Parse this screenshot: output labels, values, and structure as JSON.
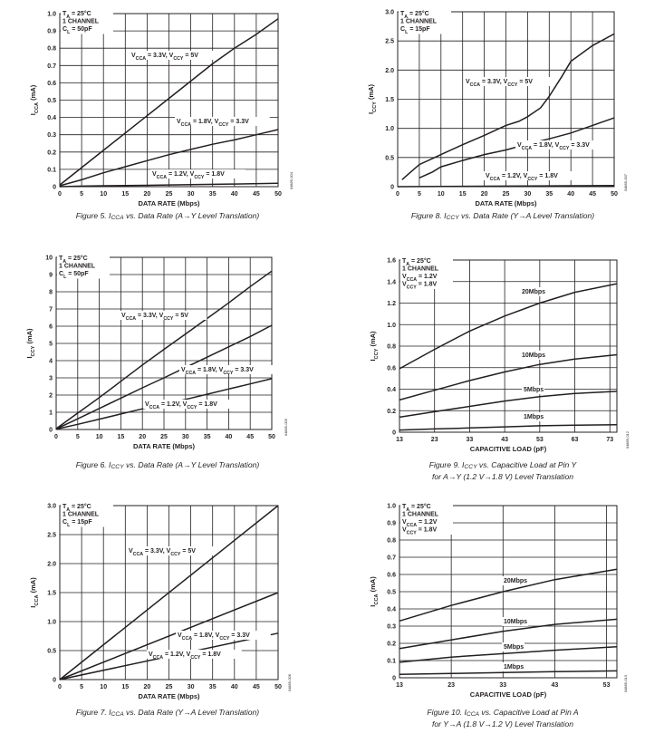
{
  "charts": [
    {
      "id": "fig5",
      "code": "04885-004",
      "caption": "Figure 5. ICCA vs. Data Rate (A→Y Level Translation)",
      "chart_data": {
        "type": "line",
        "xlabel": "DATA RATE (Mbps)",
        "ylabel": "ICCA (mA)",
        "xlim": [
          0,
          50
        ],
        "ylim": [
          0,
          1.0
        ],
        "xticks": [
          0,
          5,
          10,
          15,
          20,
          25,
          30,
          35,
          40,
          45,
          50
        ],
        "yticks": [
          0,
          0.1,
          0.2,
          0.3,
          0.4,
          0.5,
          0.6,
          0.7,
          0.8,
          0.9,
          1.0
        ],
        "ytick_labels": [
          "0",
          "0.1",
          "0.2",
          "0.3",
          "0.4",
          "0.5",
          "0.6",
          "0.7",
          "0.8",
          "0.9",
          "1.0"
        ],
        "grid": true,
        "conditions": [
          "TA = 25°C",
          "1 CHANNEL",
          "CL = 50pF"
        ],
        "series": [
          {
            "name": "VCCA = 3.3V, VCCY = 5V",
            "x": [
              0,
              5,
              10,
              15,
              20,
              25,
              30,
              35,
              40,
              45,
              50
            ],
            "y": [
              0.01,
              0.11,
              0.21,
              0.31,
              0.41,
              0.51,
              0.61,
              0.71,
              0.8,
              0.88,
              0.97
            ]
          },
          {
            "name": "VCCA = 1.8V, VCCY = 3.3V",
            "x": [
              0,
              5,
              10,
              15,
              20,
              25,
              30,
              35,
              40,
              45,
              50
            ],
            "y": [
              0.005,
              0.04,
              0.08,
              0.115,
              0.15,
              0.185,
              0.215,
              0.245,
              0.27,
              0.3,
              0.33
            ]
          },
          {
            "name": "VCCA = 1.2V, VCCY = 1.8V",
            "x": [
              0,
              5,
              10,
              20,
              30,
              40,
              50
            ],
            "y": [
              0.0,
              0.003,
              0.005,
              0.008,
              0.012,
              0.015,
              0.02
            ]
          }
        ]
      }
    },
    {
      "id": "fig8",
      "code": "04885-007",
      "caption": "Figure 8. ICCY vs. Data Rate (Y→A Level Translation)",
      "chart_data": {
        "type": "line",
        "xlabel": "DATA RATE (Mbps)",
        "ylabel": "ICCY (mA)",
        "xlim": [
          0,
          50
        ],
        "ylim": [
          0,
          3.0
        ],
        "xticks": [
          0,
          5,
          10,
          15,
          20,
          25,
          30,
          35,
          40,
          45,
          50
        ],
        "yticks": [
          0,
          0.5,
          1.0,
          1.5,
          2.0,
          2.5,
          3.0
        ],
        "ytick_labels": [
          "0",
          "0.5",
          "1.0",
          "1.5",
          "2.0",
          "2.5",
          "3.0"
        ],
        "grid": true,
        "conditions": [
          "TA = 25°C",
          "1 CHANNEL",
          "CL = 15pF"
        ],
        "series": [
          {
            "name": "VCCA = 3.3V, VCCY = 5V",
            "x": [
              1,
              3,
              5,
              8,
              10,
              15,
              20,
              25,
              28,
              30,
              33,
              35,
              38,
              40,
              45,
              50
            ],
            "y": [
              0.12,
              0.25,
              0.38,
              0.48,
              0.55,
              0.72,
              0.88,
              1.05,
              1.12,
              1.2,
              1.35,
              1.55,
              1.9,
              2.15,
              2.42,
              2.62
            ]
          },
          {
            "name": "VCCA = 1.8V, VCCY = 3.3V",
            "x": [
              5,
              8,
              10,
              15,
              20,
              25,
              30,
              35,
              40,
              45,
              50
            ],
            "y": [
              0.15,
              0.25,
              0.34,
              0.45,
              0.55,
              0.63,
              0.73,
              0.82,
              0.92,
              1.05,
              1.18
            ]
          },
          {
            "name": "VCCA = 1.2V, VCCY = 1.8V",
            "x": [
              0,
              10,
              20,
              30,
              40,
              50
            ],
            "y": [
              0.0,
              0.004,
              0.008,
              0.012,
              0.016,
              0.02
            ]
          }
        ]
      }
    },
    {
      "id": "fig6",
      "code": "04885-005",
      "caption": "Figure 6. ICCY vs. Data Rate (A→Y Level Translation)",
      "chart_data": {
        "type": "line",
        "xlabel": "DATA RATE (Mbps)",
        "ylabel": "ICCY (mA)",
        "xlim": [
          0,
          50
        ],
        "ylim": [
          0,
          10
        ],
        "xticks": [
          0,
          5,
          10,
          15,
          20,
          25,
          30,
          35,
          40,
          45,
          50
        ],
        "yticks": [
          0,
          1,
          2,
          3,
          4,
          5,
          6,
          7,
          8,
          9,
          10
        ],
        "ytick_labels": [
          "0",
          "1",
          "2",
          "3",
          "4",
          "5",
          "6",
          "7",
          "8",
          "9",
          "10"
        ],
        "grid": true,
        "conditions": [
          "TA = 25°C",
          "1 CHANNEL",
          "CL = 50pF"
        ],
        "series": [
          {
            "name": "VCCA = 3.3V, VCCY = 5V",
            "x": [
              0,
              5,
              10,
              15,
              20,
              25,
              30,
              35,
              40,
              45,
              50
            ],
            "y": [
              0.05,
              0.95,
              1.85,
              2.8,
              3.75,
              4.65,
              5.55,
              6.45,
              7.35,
              8.3,
              9.2
            ]
          },
          {
            "name": "VCCA = 1.8V, VCCY = 3.3V",
            "x": [
              0,
              5,
              10,
              15,
              20,
              25,
              30,
              35,
              40,
              45,
              50
            ],
            "y": [
              0.03,
              0.62,
              1.22,
              1.82,
              2.42,
              3.0,
              3.6,
              4.2,
              4.8,
              5.4,
              6.05
            ]
          },
          {
            "name": "VCCA = 1.2V, VCCY = 1.8V",
            "x": [
              0,
              5,
              10,
              15,
              20,
              25,
              30,
              35,
              40,
              45,
              50
            ],
            "y": [
              0.02,
              0.3,
              0.6,
              0.9,
              1.2,
              1.5,
              1.75,
              2.05,
              2.35,
              2.65,
              2.95
            ]
          }
        ]
      }
    },
    {
      "id": "fig9",
      "code": "04885-012",
      "caption": "Figure 9. ICCY vs. Capacitive Load at Pin Y|for A→Y (1.2 V→1.8 V) Level Translation",
      "chart_data": {
        "type": "line",
        "xlabel": "CAPACITIVE LOAD (pF)",
        "ylabel": "ICCY (mA)",
        "xlim": [
          13,
          75
        ],
        "ylim": [
          0,
          1.6
        ],
        "xticks": [
          13,
          23,
          33,
          43,
          53,
          63,
          73
        ],
        "yticks": [
          0,
          0.2,
          0.4,
          0.6,
          0.8,
          1.0,
          1.2,
          1.4,
          1.6
        ],
        "ytick_labels": [
          "0",
          "0.2",
          "0.4",
          "0.6",
          "0.8",
          "1.0",
          "1.2",
          "1.4",
          "1.6"
        ],
        "grid": true,
        "conditions": [
          "TA = 25°C",
          "1 CHANNEL",
          "VCCA = 1.2V",
          "VCCY = 1.8V"
        ],
        "series": [
          {
            "name": "20Mbps",
            "x": [
              13,
              23,
              33,
              43,
              53,
              63,
              75
            ],
            "y": [
              0.59,
              0.77,
              0.94,
              1.08,
              1.2,
              1.3,
              1.38
            ]
          },
          {
            "name": "10Mbps",
            "x": [
              13,
              23,
              33,
              43,
              53,
              63,
              75
            ],
            "y": [
              0.3,
              0.39,
              0.48,
              0.56,
              0.63,
              0.68,
              0.72
            ]
          },
          {
            "name": "5Mbps",
            "x": [
              13,
              23,
              33,
              43,
              53,
              63,
              75
            ],
            "y": [
              0.14,
              0.19,
              0.24,
              0.29,
              0.33,
              0.36,
              0.38
            ]
          },
          {
            "name": "1Mbps",
            "x": [
              13,
              23,
              33,
              43,
              53,
              63,
              75
            ],
            "y": [
              0.02,
              0.03,
              0.04,
              0.05,
              0.06,
              0.065,
              0.07
            ]
          }
        ]
      }
    },
    {
      "id": "fig7",
      "code": "04885-006",
      "caption": "Figure 7. ICCA vs. Data Rate (Y→A Level Translation)",
      "chart_data": {
        "type": "line",
        "xlabel": "DATA RATE (Mbps)",
        "ylabel": "ICCA (mA)",
        "xlim": [
          0,
          50
        ],
        "ylim": [
          0,
          3.0
        ],
        "xticks": [
          0,
          5,
          10,
          15,
          20,
          25,
          30,
          35,
          40,
          45,
          50
        ],
        "yticks": [
          0,
          0.5,
          1.0,
          1.5,
          2.0,
          2.5,
          3.0
        ],
        "ytick_labels": [
          "0",
          "0.5",
          "1.0",
          "1.5",
          "2.0",
          "2.5",
          "3.0"
        ],
        "grid": true,
        "conditions": [
          "TA = 25°C",
          "1 CHANNEL",
          "CL = 15pF"
        ],
        "series": [
          {
            "name": "VCCA = 3.3V, VCCY = 5V",
            "x": [
              0,
              50
            ],
            "y": [
              0.0,
              3.0
            ]
          },
          {
            "name": "VCCA = 1.8V, VCCY = 3.3V",
            "x": [
              0,
              50
            ],
            "y": [
              0.0,
              1.5
            ]
          },
          {
            "name": "VCCA = 1.2V, VCCY = 1.8V",
            "x": [
              0,
              50
            ],
            "y": [
              0.0,
              0.8
            ]
          }
        ]
      }
    },
    {
      "id": "fig10",
      "code": "04885-013",
      "caption": "Figure 10. ICCA vs. Capacitive Load at Pin A|for Y→A (1.8 V→1.2 V) Level Translation",
      "chart_data": {
        "type": "line",
        "xlabel": "CAPACITIVE LOAD (pF)",
        "ylabel": "ICCA (mA)",
        "xlim": [
          13,
          55
        ],
        "ylim": [
          0,
          1.0
        ],
        "xticks": [
          13,
          23,
          33,
          43,
          53
        ],
        "yticks": [
          0,
          0.1,
          0.2,
          0.3,
          0.4,
          0.5,
          0.6,
          0.7,
          0.8,
          0.9,
          1.0
        ],
        "ytick_labels": [
          "0",
          "0.1",
          "0.2",
          "0.3",
          "0.4",
          "0.5",
          "0.6",
          "0.7",
          "0.8",
          "0.9",
          "1.0"
        ],
        "grid": true,
        "conditions": [
          "TA = 25°C",
          "1 CHANNEL",
          "VCCA = 1.2V",
          "VCCY = 1.8V"
        ],
        "series": [
          {
            "name": "20Mbps",
            "x": [
              13,
              23,
              33,
              43,
              55
            ],
            "y": [
              0.33,
              0.42,
              0.5,
              0.57,
              0.63
            ]
          },
          {
            "name": "10Mbps",
            "x": [
              13,
              23,
              33,
              43,
              55
            ],
            "y": [
              0.17,
              0.22,
              0.27,
              0.31,
              0.34
            ]
          },
          {
            "name": "5Mbps",
            "x": [
              13,
              23,
              33,
              43,
              55
            ],
            "y": [
              0.09,
              0.12,
              0.14,
              0.16,
              0.18
            ]
          },
          {
            "name": "1Mbps",
            "x": [
              13,
              23,
              33,
              43,
              55
            ],
            "y": [
              0.02,
              0.025,
              0.03,
              0.035,
              0.04
            ]
          }
        ]
      }
    }
  ]
}
